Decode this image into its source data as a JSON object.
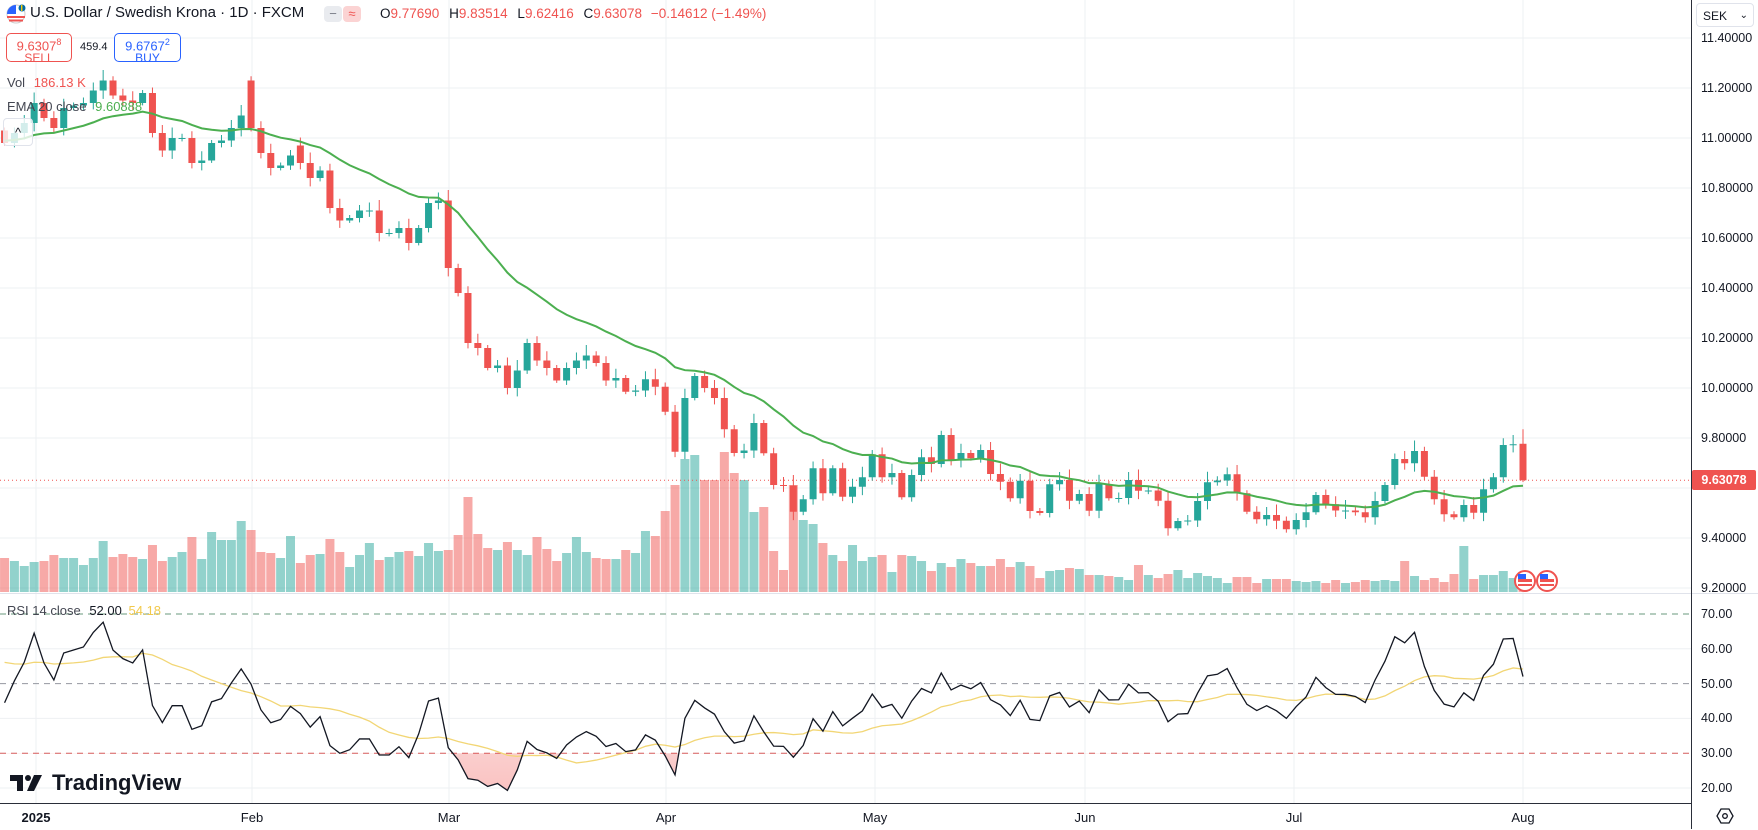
{
  "header": {
    "title": "U.S. Dollar / Swedish Krona · 1D · FXCM",
    "minus_icon": "−",
    "wave_icon": "≈",
    "ohlc": {
      "o_label": "O",
      "o": "9.77690",
      "h_label": "H",
      "h": "9.83514",
      "l_label": "L",
      "l": "9.62416",
      "c_label": "C",
      "c": "9.63078",
      "change": "−0.14612 (−1.49%)"
    }
  },
  "trade": {
    "sell_price": "9.6307",
    "sell_sup": "8",
    "sell_label": "SELL",
    "spread": "459.4",
    "buy_price": "9.6767",
    "buy_sup": "2",
    "buy_label": "BUY"
  },
  "indicators": {
    "vol_label": "Vol",
    "vol_value": "186.13 K",
    "ema_label": "EMA 20 close",
    "ema_value": "9.60888",
    "rsi_label": "RSI 14 close",
    "rsi_value": "52.00",
    "rsi_ma_value": "54.18",
    "collapse_icon": "^"
  },
  "price_axis": {
    "currency": "SEK",
    "labels": [
      "11.40000",
      "11.20000",
      "11.00000",
      "10.80000",
      "10.60000",
      "10.40000",
      "10.20000",
      "10.00000",
      "9.80000",
      "9.40000",
      "9.20000"
    ],
    "last_price": "9.63078"
  },
  "rsi_axis": {
    "labels": [
      "70.00",
      "60.00",
      "50.00",
      "40.00",
      "30.00",
      "20.00"
    ]
  },
  "time_axis": {
    "labels": [
      "2025",
      "Feb",
      "Mar",
      "Apr",
      "May",
      "Jun",
      "Jul",
      "Aug"
    ]
  },
  "brand": "TradingView",
  "colors": {
    "up": "#26a69a",
    "down": "#ef5350",
    "ema": "#4caf50",
    "rsi": "#131722",
    "rsi_ma": "#f2d675",
    "buy": "#2962ff"
  },
  "chart_data": {
    "type": "candlestick",
    "ylim": [
      9.2,
      11.4
    ],
    "rsi_ylim": [
      20,
      70
    ],
    "rsi_levels": [
      70,
      50,
      30
    ],
    "ema_period": 20,
    "rsi_period": 14,
    "rsi_ma_period": 14,
    "open_overrides": {
      "0": 11.03,
      "25": 11.23,
      "30": 10.97
    },
    "last_bar": {
      "o": 9.7769,
      "h": 9.83514,
      "l": 9.62416,
      "c": 9.63078
    },
    "closes": [
      10.98,
      11.02,
      11.06,
      11.14,
      11.08,
      11.04,
      11.12,
      11.13,
      11.14,
      11.19,
      11.23,
      11.17,
      11.15,
      11.14,
      11.18,
      11.02,
      10.95,
      11.0,
      11.0,
      10.9,
      10.91,
      10.98,
      10.99,
      11.04,
      11.09,
      11.04,
      10.94,
      10.88,
      10.89,
      10.93,
      10.9,
      10.84,
      10.87,
      10.72,
      10.67,
      10.68,
      10.71,
      10.71,
      10.62,
      10.62,
      10.64,
      10.58,
      10.64,
      10.74,
      10.75,
      10.48,
      10.38,
      10.18,
      10.16,
      10.08,
      10.09,
      10.0,
      10.07,
      10.18,
      10.11,
      10.08,
      10.03,
      10.08,
      10.11,
      10.13,
      10.1,
      10.03,
      10.04,
      9.985,
      9.99,
      10.035,
      10.005,
      9.905,
      9.745,
      9.96,
      10.048,
      10.0,
      9.96,
      9.835,
      9.74,
      9.75,
      9.86,
      9.739,
      9.612,
      9.61,
      9.505,
      9.555,
      9.679,
      9.579,
      9.679,
      9.565,
      9.605,
      9.643,
      9.735,
      9.643,
      9.66,
      9.563,
      9.652,
      9.723,
      9.696,
      9.812,
      9.712,
      9.74,
      9.719,
      9.752,
      9.656,
      9.625,
      9.559,
      9.629,
      9.508,
      9.5,
      9.615,
      9.632,
      9.549,
      9.576,
      9.509,
      9.616,
      9.559,
      9.56,
      9.632,
      9.589,
      9.59,
      9.549,
      9.439,
      9.468,
      9.47,
      9.548,
      9.623,
      9.63,
      9.655,
      9.579,
      9.505,
      9.475,
      9.492,
      9.469,
      9.435,
      9.472,
      9.503,
      9.572,
      9.535,
      9.51,
      9.51,
      9.503,
      9.483,
      9.548,
      9.612,
      9.716,
      9.699,
      9.748,
      9.645,
      9.555,
      9.495,
      9.483,
      9.532,
      9.501,
      9.595,
      9.643,
      9.772,
      9.775,
      9.63078
    ],
    "volume_k": [
      680,
      620,
      520,
      600,
      620,
      740,
      680,
      680,
      540,
      680,
      1020,
      700,
      760,
      700,
      660,
      940,
      620,
      700,
      800,
      1100,
      660,
      1200,
      1040,
      1040,
      1420,
      1240,
      800,
      780,
      680,
      1120,
      580,
      740,
      760,
      1060,
      800,
      500,
      740,
      980,
      640,
      700,
      800,
      820,
      720,
      980,
      820,
      840,
      1140,
      1900,
      1160,
      880,
      840,
      1000,
      840,
      740,
      1100,
      860,
      620,
      780,
      1100,
      800,
      680,
      660,
      660,
      840,
      780,
      1220,
      1120,
      1620,
      2140,
      2660,
      2740,
      2240,
      2240,
      2800,
      2380,
      2240,
      1600,
      1700,
      820,
      440,
      2140,
      1440,
      1360,
      980,
      740,
      620,
      940,
      620,
      700,
      740,
      400,
      740,
      720,
      620,
      420,
      580,
      500,
      660,
      580,
      520,
      520,
      660,
      500,
      600,
      520,
      280,
      420,
      440,
      480,
      460,
      340,
      340,
      320,
      300,
      240,
      540,
      340,
      280,
      360,
      440,
      280,
      380,
      320,
      280,
      180,
      300,
      300,
      180,
      260,
      260,
      260,
      220,
      200,
      220,
      180,
      240,
      180,
      200,
      240,
      220,
      240,
      220,
      620,
      320,
      240,
      280,
      200,
      360,
      920,
      260,
      340,
      340,
      420,
      280,
      186.13
    ]
  }
}
